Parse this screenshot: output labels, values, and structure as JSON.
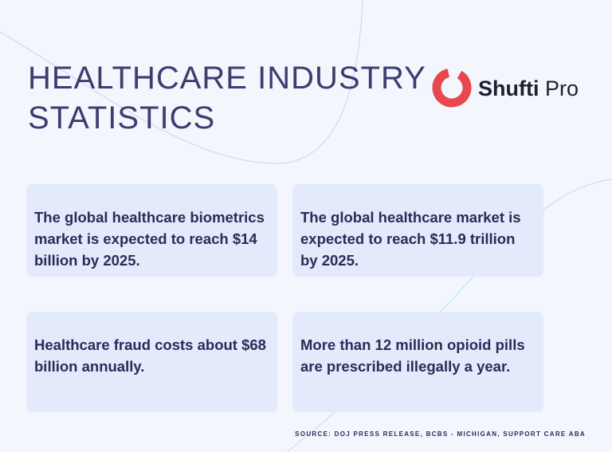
{
  "header": {
    "title_lines": [
      "HEALTHCARE INDUSTRY",
      "STATISTICS"
    ],
    "logo": {
      "primary": "Shufti",
      "secondary": "Pro"
    }
  },
  "cards": [
    {
      "text": "The global healthcare biometrics market is expected to reach $14 billion by 2025."
    },
    {
      "text": "The global healthcare market is expected to reach $11.9 trillion by 2025."
    },
    {
      "text": "Healthcare fraud costs about $68 billion annually."
    },
    {
      "text": "More than 12 million opioid pills are prescribed illegally a year."
    }
  ],
  "source": "SOURCE: DOJ PRESS RELEASE, BCBS - MICHIGAN, SUPPORT CARE ABA"
}
